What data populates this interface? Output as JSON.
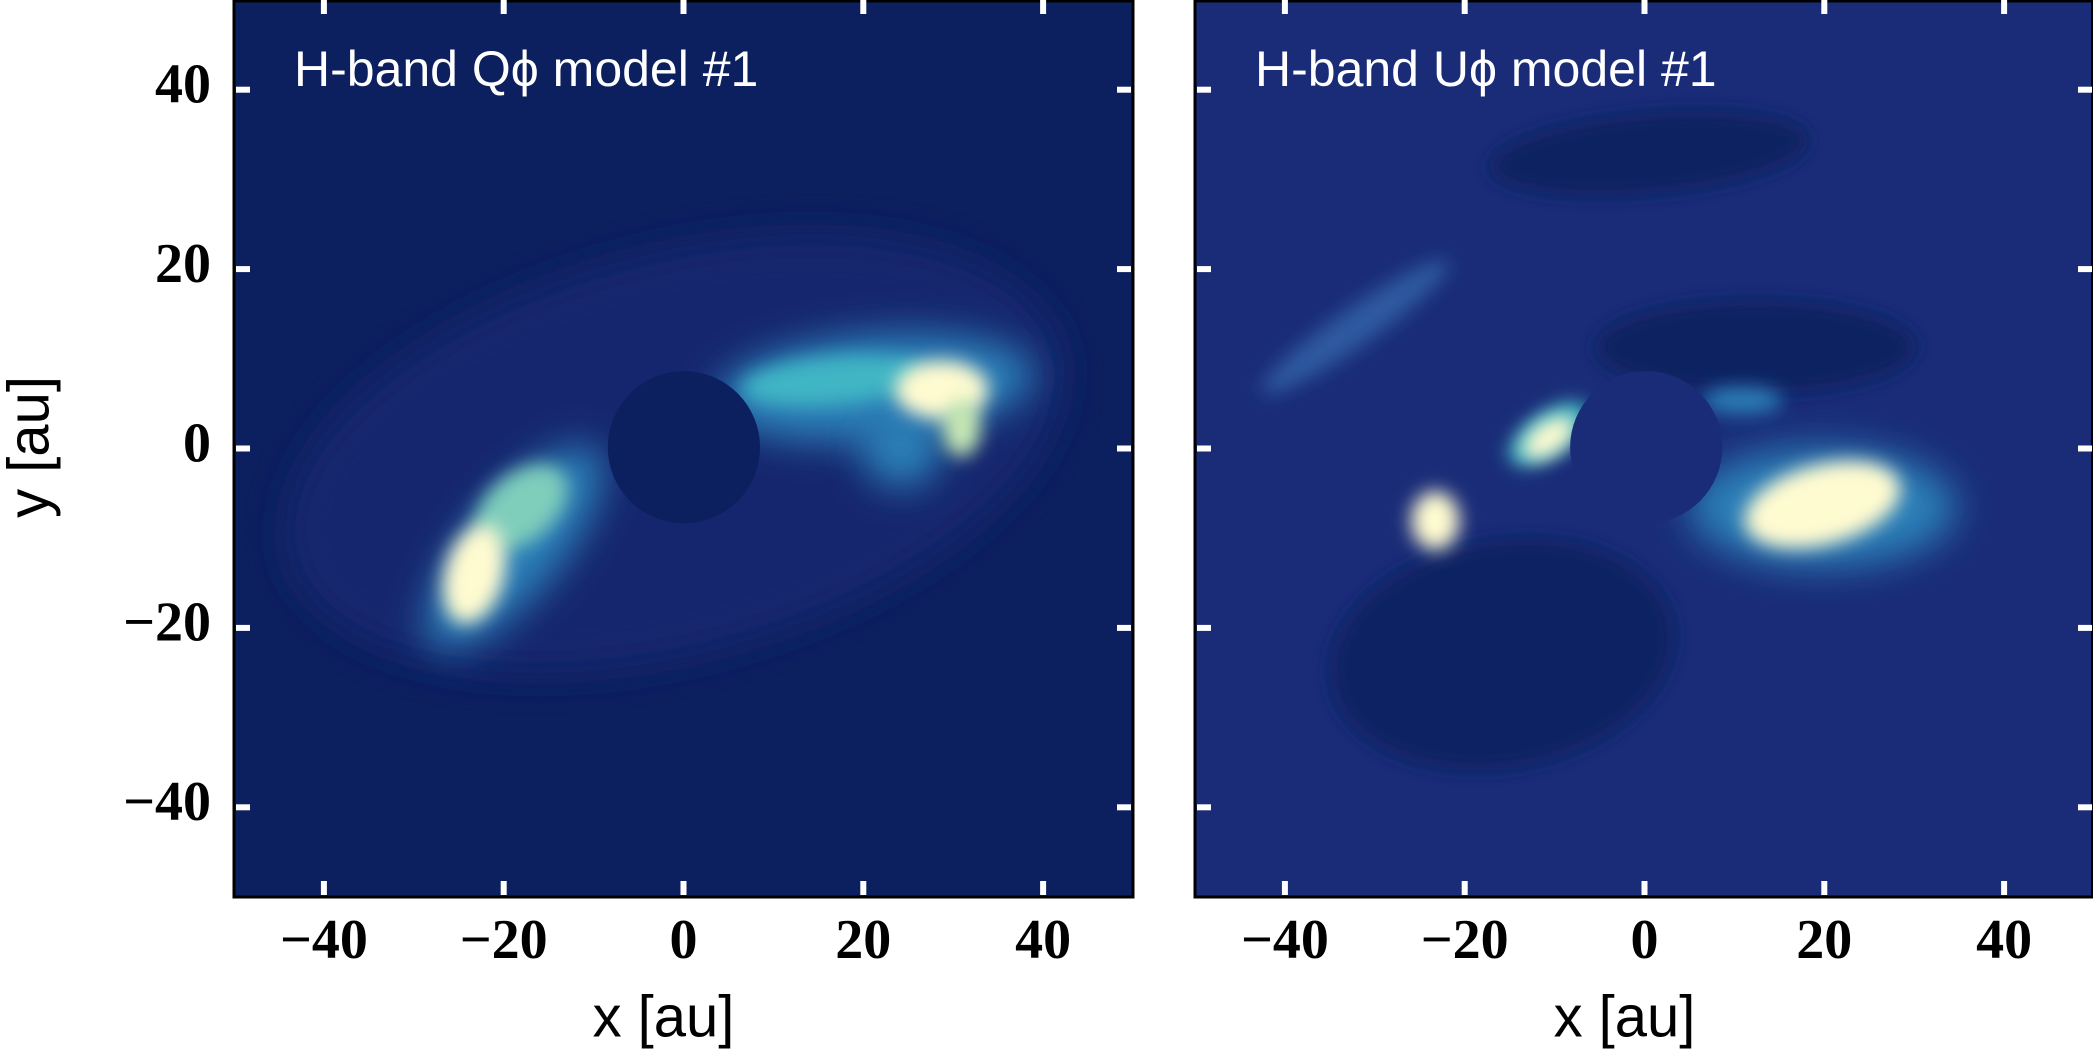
{
  "chart_data": [
    {
      "type": "image",
      "title": "H-band Qϕ model #1",
      "xlabel": "x [au]",
      "ylabel": "y [au]",
      "xlim": [
        -50,
        50
      ],
      "ylim": [
        -50,
        50
      ],
      "xticks": [
        {
          "value": -40,
          "label": "−40"
        },
        {
          "value": -20,
          "label": "−20"
        },
        0,
        20,
        40
      ],
      "yticks": [
        {
          "value": -40,
          "label": "−40"
        },
        {
          "value": -20,
          "label": "−20"
        },
        0,
        20,
        40
      ]
    },
    {
      "type": "image",
      "title": "H-band Uϕ model #1",
      "xlabel": "x [au]",
      "xlim": [
        -50,
        50
      ],
      "ylim": [
        -50,
        50
      ],
      "xticks": [
        {
          "value": -40,
          "label": "−40"
        },
        {
          "value": -20,
          "label": "−20"
        },
        0,
        20,
        40
      ],
      "yticks": [
        -40,
        -20,
        0,
        20,
        40
      ]
    }
  ]
}
